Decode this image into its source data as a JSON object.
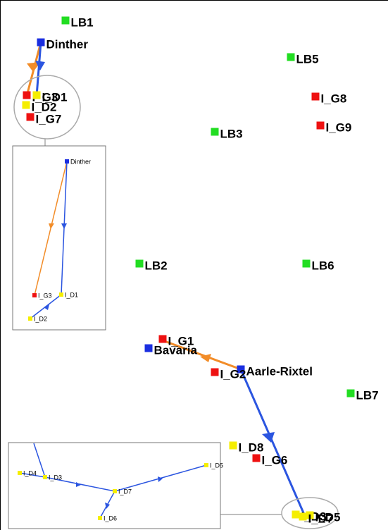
{
  "main": {
    "nodes": [
      {
        "label": "LB1"
      },
      {
        "label": "Dinther"
      },
      {
        "label": "LB5"
      },
      {
        "label": "I_G8"
      },
      {
        "label": "I_G9"
      },
      {
        "label": "LB3"
      },
      {
        "label": "I_G3"
      },
      {
        "label": "I_D1"
      },
      {
        "label": "I_D2"
      },
      {
        "label": "I_G7"
      },
      {
        "label": "LB2"
      },
      {
        "label": "LB6"
      },
      {
        "label": "I_G1"
      },
      {
        "label": "Bavaria"
      },
      {
        "label": "Aarle-Rixtel"
      },
      {
        "label": "I_G2"
      },
      {
        "label": "LB7"
      },
      {
        "label": "I_D8"
      },
      {
        "label": "I_G6"
      },
      {
        "label": "I_D3"
      },
      {
        "label": "I_D5"
      },
      {
        "label": "I_D7"
      }
    ]
  },
  "inset_top": {
    "nodes": [
      {
        "label": "Dinther"
      },
      {
        "label": "I_G3"
      },
      {
        "label": "I_D1"
      },
      {
        "label": "I_D2"
      }
    ]
  },
  "inset_bottom": {
    "nodes": [
      {
        "label": "I_D4"
      },
      {
        "label": "I_D3"
      },
      {
        "label": "I_D7"
      },
      {
        "label": "I_D5"
      },
      {
        "label": "I_D6"
      }
    ]
  }
}
